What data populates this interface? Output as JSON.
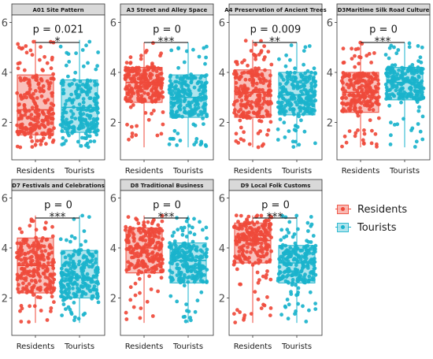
{
  "chart_data": {
    "type": "scatter",
    "group_names": [
      "Residents",
      "Tourists"
    ],
    "colors": {
      "Residents": "#ef4a3b",
      "Tourists": "#1ab3cc"
    },
    "ylim": [
      0.5,
      6.3
    ],
    "yticks": [
      2,
      4,
      6
    ],
    "legend": {
      "position": "right",
      "labels": [
        "Residents",
        "Tourists"
      ]
    },
    "panels": [
      {
        "title": "A01  Site Pattern",
        "p_label": "p = 0.021",
        "signif": "*",
        "groups": [
          {
            "name": "Residents",
            "q1": 1.5,
            "median": 2.5,
            "q3": 3.9,
            "min": 1.0,
            "max": 5.3
          },
          {
            "name": "Tourists",
            "q1": 1.6,
            "median": 2.6,
            "q3": 3.7,
            "min": 1.0,
            "max": 5.3
          }
        ]
      },
      {
        "title": "A3 Street and Alley Space",
        "p_label": "p = 0",
        "signif": "***",
        "groups": [
          {
            "name": "Residents",
            "q1": 2.8,
            "median": 3.6,
            "q3": 4.2,
            "min": 1.0,
            "max": 5.2
          },
          {
            "name": "Tourists",
            "q1": 2.2,
            "median": 3.0,
            "q3": 3.9,
            "min": 1.0,
            "max": 5.2
          }
        ]
      },
      {
        "title": "A4 Preservation of Ancient Trees",
        "p_label": "p = 0.009",
        "signif": "**",
        "groups": [
          {
            "name": "Residents",
            "q1": 2.2,
            "median": 3.2,
            "q3": 4.1,
            "min": 1.0,
            "max": 5.3
          },
          {
            "name": "Tourists",
            "q1": 2.3,
            "median": 3.1,
            "q3": 4.0,
            "min": 1.0,
            "max": 5.2
          }
        ]
      },
      {
        "title": "D3Maritime Silk Road Culture",
        "p_label": "p = 0",
        "signif": "***",
        "groups": [
          {
            "name": "Residents",
            "q1": 2.4,
            "median": 3.2,
            "q3": 4.0,
            "min": 1.0,
            "max": 5.2
          },
          {
            "name": "Tourists",
            "q1": 2.9,
            "median": 3.6,
            "q3": 4.2,
            "min": 1.0,
            "max": 5.2
          }
        ]
      },
      {
        "title": "D7 Festivals and Celebrations",
        "p_label": "p = 0",
        "signif": "***",
        "groups": [
          {
            "name": "Residents",
            "q1": 2.2,
            "median": 3.3,
            "q3": 4.4,
            "min": 1.0,
            "max": 5.3
          },
          {
            "name": "Tourists",
            "q1": 2.0,
            "median": 2.8,
            "q3": 3.9,
            "min": 1.0,
            "max": 5.3
          }
        ]
      },
      {
        "title": "D8 Traditional Business",
        "p_label": "p = 0",
        "signif": "***",
        "groups": [
          {
            "name": "Residents",
            "q1": 3.0,
            "median": 4.0,
            "q3": 4.8,
            "min": 1.0,
            "max": 5.3
          },
          {
            "name": "Tourists",
            "q1": 2.6,
            "median": 3.5,
            "q3": 4.2,
            "min": 1.0,
            "max": 5.3
          }
        ]
      },
      {
        "title": "D9 Local Folk Customs",
        "p_label": "p = 0",
        "signif": "***",
        "groups": [
          {
            "name": "Residents",
            "q1": 3.4,
            "median": 4.3,
            "q3": 5.0,
            "min": 1.0,
            "max": 5.3
          },
          {
            "name": "Tourists",
            "q1": 2.6,
            "median": 3.4,
            "q3": 4.1,
            "min": 1.0,
            "max": 5.3
          }
        ]
      }
    ]
  }
}
